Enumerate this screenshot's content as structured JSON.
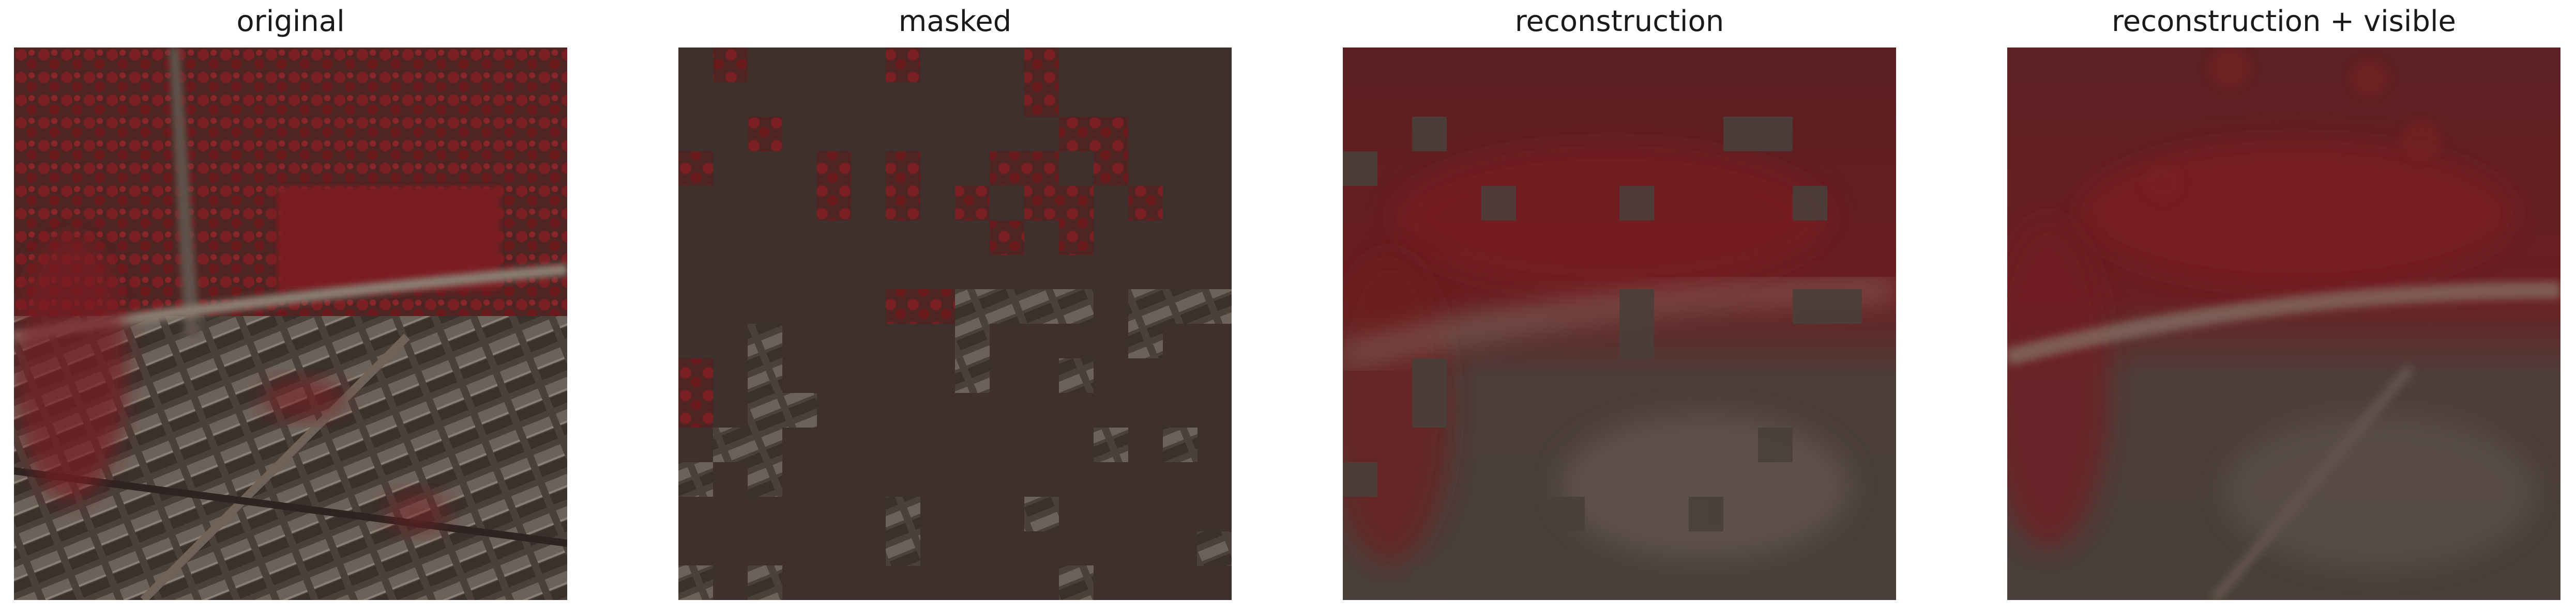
{
  "panels": [
    {
      "title": "original",
      "image": "aerial-false-color-urban-tile"
    },
    {
      "title": "masked",
      "image": "aerial-tile-with-masked-patches"
    },
    {
      "title": "reconstruction",
      "image": "reconstructed-aerial-tile"
    },
    {
      "title": "reconstruction + visible",
      "image": "reconstruction-with-visible-patches"
    }
  ],
  "colors": {
    "mask_fill": "#3d302d",
    "vegetation_red": "#6e1c1f",
    "urban_gray": "#5b4f48",
    "road_light": "#8a7d70"
  }
}
